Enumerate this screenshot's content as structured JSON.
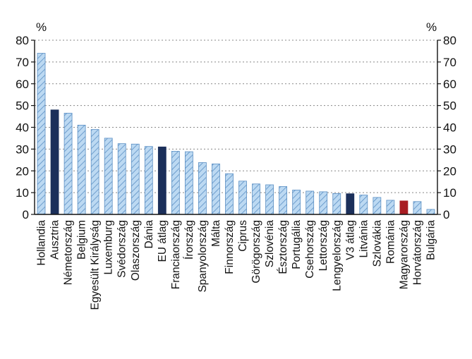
{
  "chart_data": {
    "type": "bar",
    "y_unit_left": "%",
    "y_unit_right": "%",
    "ylim": [
      0,
      80
    ],
    "y_ticks": [
      0,
      10,
      20,
      30,
      40,
      50,
      60,
      70,
      80
    ],
    "grid": "horizontal dotted",
    "categories": [
      "Hollandia",
      "Ausztria",
      "Németország",
      "Belgium",
      "Egyesült Királyság",
      "Luxemburg",
      "Svédország",
      "Olaszország",
      "Dánia",
      "EU átlag",
      "Franciaország",
      "Írország",
      "Spanyolország",
      "Málta",
      "Finnország",
      "Ciprus",
      "Görögország",
      "Szlovénia",
      "Észtország",
      "Portugália",
      "Csehország",
      "Lettország",
      "Lengyelország",
      "V3 átlag",
      "Litvánia",
      "Szlovákia",
      "Románia",
      "Magyarország",
      "Horvátország",
      "Bulgária"
    ],
    "values": [
      74,
      48,
      46.5,
      41,
      39,
      35,
      32.5,
      32.3,
      31.2,
      31,
      29,
      28.8,
      23.8,
      23.2,
      18.7,
      15.3,
      14,
      13.6,
      12.8,
      11.2,
      10.7,
      10.4,
      9.6,
      9.5,
      8.9,
      7.8,
      6.5,
      6.2,
      5.9,
      2.3
    ],
    "bar_styles": [
      "hatched",
      "navy",
      "hatched",
      "hatched",
      "hatched",
      "hatched",
      "hatched",
      "hatched",
      "hatched",
      "navy",
      "hatched",
      "hatched",
      "hatched",
      "hatched",
      "hatched",
      "hatched",
      "hatched",
      "hatched",
      "hatched",
      "hatched",
      "hatched",
      "hatched",
      "hatched",
      "navy",
      "hatched",
      "hatched",
      "hatched",
      "red",
      "hatched",
      "hatched"
    ],
    "colors": {
      "hatched_fill": "#bcd9f2",
      "hatched_stroke": "#5b8fc4",
      "navy": "#1b2f5a",
      "red": "#a81c22",
      "grid": "#888888",
      "axis": "#111111"
    }
  }
}
